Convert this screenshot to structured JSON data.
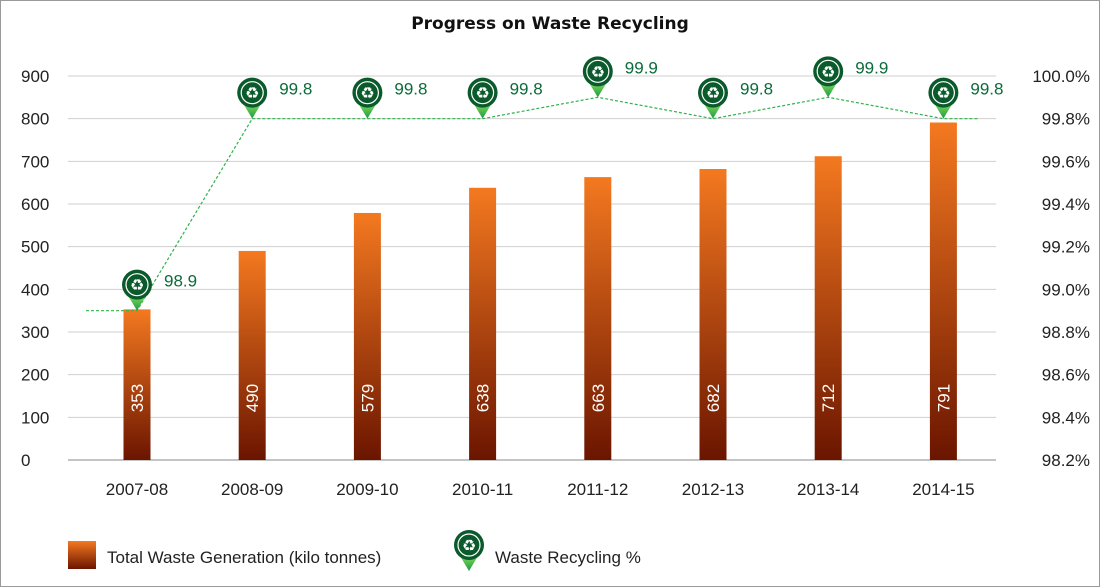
{
  "chart_data": {
    "type": "bar",
    "title": "Progress on Waste Recycling",
    "categories": [
      "2007-08",
      "2008-09",
      "2009-10",
      "2010-11",
      "2011-12",
      "2012-13",
      "2013-14",
      "2014-15"
    ],
    "series": [
      {
        "name": "Total Waste Generation (kilo tonnes)",
        "type": "bar",
        "axis": "left",
        "values": [
          353,
          490,
          579,
          638,
          663,
          682,
          712,
          791
        ],
        "color": "#f47920"
      },
      {
        "name": "Waste Recycling %",
        "type": "line",
        "axis": "right",
        "values": [
          98.9,
          99.8,
          99.8,
          99.8,
          99.9,
          99.8,
          99.9,
          99.8
        ],
        "color": "#2db34a"
      }
    ],
    "y_left": {
      "min": 0,
      "max": 900,
      "ticks": [
        "0",
        "100",
        "200",
        "300",
        "400",
        "500",
        "600",
        "700",
        "800",
        "900"
      ]
    },
    "y_right": {
      "min": 98.2,
      "max": 100.0,
      "ticks": [
        "98.2%",
        "98.4%",
        "98.6%",
        "98.8%",
        "99.0%",
        "99.2%",
        "99.4%",
        "99.6%",
        "99.8%",
        "100.0%"
      ]
    },
    "grid": true,
    "legend": "bottom-left",
    "marker_icon": "recycle-pin-icon",
    "colors": {
      "bar_top": "#f47920",
      "bar_bottom": "#6b1500",
      "line": "#2db34a",
      "marker": "#0b5a2c",
      "marker_tip": "#3ec15e",
      "pct_text": "#0b6b3a"
    }
  }
}
